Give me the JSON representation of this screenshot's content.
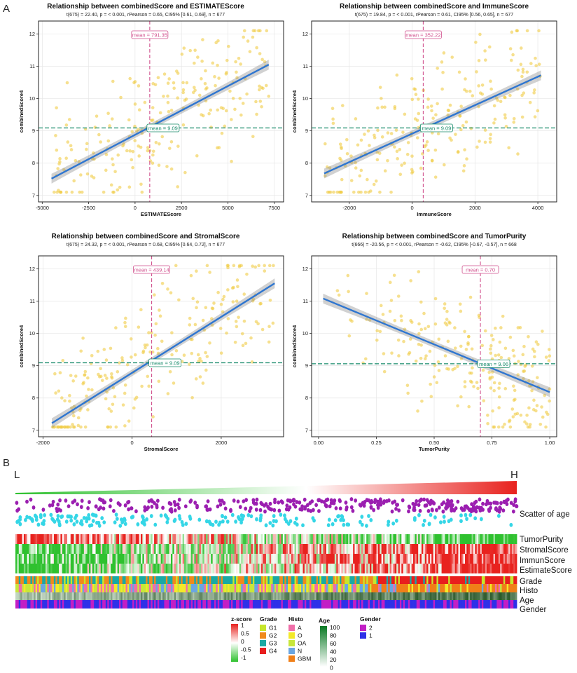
{
  "panel_letters": {
    "a": "A",
    "b": "B"
  },
  "chart_data": [
    {
      "type": "scatter",
      "title": "Relationship between combinedScore and ESTIMATEScore",
      "subtitle": "t(675) = 22.40, p = < 0.001, rPearson = 0.65, CI95% [0.61, 0.69], n = 677",
      "xlabel": "ESTIMATEScore",
      "ylabel": "combinedScore4",
      "xlim": [
        -5200,
        8000
      ],
      "ylim": [
        6.8,
        12.4
      ],
      "xticks": [
        -5000,
        -2500,
        0,
        2500,
        5000,
        7500
      ],
      "xtick_labels": [
        "-5000",
        "-2500",
        "0",
        "2500",
        "5000",
        "7500"
      ],
      "yticks": [
        7,
        8,
        9,
        10,
        11,
        12
      ],
      "ytick_labels": [
        "7",
        "8",
        "9",
        "10",
        "11",
        "12"
      ],
      "x_range": [
        -4500,
        7200
      ],
      "n_points": 230,
      "seed": 11,
      "fit_line": {
        "x": [
          -4500,
          7200
        ],
        "y": [
          7.52,
          11.05
        ]
      },
      "x_mean": 791.35,
      "y_mean": 9.09,
      "x_mean_label": "mean = 791.35",
      "y_mean_label": "mean = 9.09"
    },
    {
      "type": "scatter",
      "title": "Relationship between combinedScore and ImmuneScore",
      "subtitle": "t(675) = 19.84, p = < 0.001, rPearson = 0.61, CI95% [0.56, 0.65], n = 677",
      "xlabel": "ImmuneScore",
      "ylabel": "combinedScore4",
      "xlim": [
        -3200,
        4600
      ],
      "ylim": [
        6.8,
        12.4
      ],
      "xticks": [
        -2000,
        0,
        2000,
        4000
      ],
      "xtick_labels": [
        "-2000",
        "0",
        "2000",
        "4000"
      ],
      "yticks": [
        7,
        8,
        9,
        10,
        11,
        12
      ],
      "ytick_labels": [
        "7",
        "8",
        "9",
        "10",
        "11",
        "12"
      ],
      "x_range": [
        -2800,
        4100
      ],
      "n_points": 230,
      "seed": 23,
      "fit_line": {
        "x": [
          -2800,
          4100
        ],
        "y": [
          7.68,
          10.72
        ]
      },
      "x_mean": 352.22,
      "y_mean": 9.09,
      "x_mean_label": "mean = 352.22",
      "y_mean_label": "mean = 9.09"
    },
    {
      "type": "scatter",
      "title": "Relationship between combinedScore and StromalScore",
      "subtitle": "t(675) = 24.32, p = < 0.001, rPearson = 0.68, CI95% [0.64, 0.72], n = 677",
      "xlabel": "StromalScore",
      "ylabel": "combinedScore4",
      "xlim": [
        -2100,
        3400
      ],
      "ylim": [
        6.8,
        12.4
      ],
      "xticks": [
        -2000,
        0,
        2000
      ],
      "xtick_labels": [
        "-2000",
        "0",
        "2000"
      ],
      "yticks": [
        7,
        8,
        9,
        10,
        11,
        12
      ],
      "ytick_labels": [
        "7",
        "8",
        "9",
        "10",
        "11",
        "12"
      ],
      "x_range": [
        -1800,
        3200
      ],
      "n_points": 230,
      "seed": 37,
      "fit_line": {
        "x": [
          -1800,
          3200
        ],
        "y": [
          7.22,
          11.55
        ]
      },
      "x_mean": 439.14,
      "y_mean": 9.09,
      "x_mean_label": "mean = 439.14",
      "y_mean_label": "mean = 9.09"
    },
    {
      "type": "scatter",
      "title": "Relationship between combinedScore and TumorPurity",
      "subtitle": "t(666) = -20.56, p = < 0.001, rPearson = -0.62, CI95% [-0.67, -0.57], n = 668",
      "xlabel": "TumorPurity",
      "ylabel": "combinedScore4",
      "xlim": [
        -0.03,
        1.03
      ],
      "ylim": [
        6.8,
        12.4
      ],
      "xticks": [
        0,
        0.25,
        0.5,
        0.75,
        1.0
      ],
      "xtick_labels": [
        "0.00",
        "0.25",
        "0.50",
        "0.75",
        "1.00"
      ],
      "yticks": [
        7,
        8,
        9,
        10,
        11,
        12
      ],
      "ytick_labels": [
        "7",
        "8",
        "9",
        "10",
        "11",
        "12"
      ],
      "x_range": [
        0.02,
        1.0
      ],
      "n_points": 230,
      "seed": 53,
      "fit_line": {
        "x": [
          0.02,
          1.0
        ],
        "y": [
          11.08,
          8.18
        ]
      },
      "x_mean": 0.7,
      "y_mean": 9.06,
      "x_mean_label": "mean = 0.70",
      "y_mean_label": "mean = 9.06"
    }
  ],
  "heatmap": {
    "low_label": "L",
    "high_label": "H",
    "row_labels": {
      "scatter_age": "Scatter of age",
      "tumor_purity": "TumorPurity",
      "stromal": "StromalScore",
      "immune": "ImmunScore",
      "estimate": "EstimateScore",
      "grade": "Grade",
      "histo": "Histo",
      "age": "Age",
      "gender": "Gender"
    },
    "n_columns": 300,
    "colors": {
      "high": "#e8221e",
      "low": "#2fc12f",
      "mid": "#ffffff",
      "age_dot_1": "#9b1fb0",
      "age_dot_2": "#35d6e6"
    }
  },
  "legend": {
    "zscore": {
      "title": "z-score",
      "labels": [
        "1",
        "0.5",
        "0",
        "-0.5",
        "-1"
      ]
    },
    "grade": {
      "title": "Grade",
      "items": [
        {
          "label": "G1",
          "color": "#c7e62c"
        },
        {
          "label": "G2",
          "color": "#f08a1c"
        },
        {
          "label": "G3",
          "color": "#1aa9a4"
        },
        {
          "label": "G4",
          "color": "#e81e1e"
        }
      ]
    },
    "histo": {
      "title": "Histo",
      "items": [
        {
          "label": "A",
          "color": "#ef6ea8"
        },
        {
          "label": "O",
          "color": "#f3e92a"
        },
        {
          "label": "OA",
          "color": "#c8e63a"
        },
        {
          "label": "N",
          "color": "#6aa6e2"
        },
        {
          "label": "GBM",
          "color": "#f07f18"
        }
      ]
    },
    "age": {
      "title": "Age",
      "labels": [
        "100",
        "80",
        "60",
        "40",
        "20",
        "0"
      ]
    },
    "gender": {
      "title": "Gender",
      "items": [
        {
          "label": "2",
          "color": "#c21fc5"
        },
        {
          "label": "1",
          "color": "#2f31e8"
        }
      ]
    }
  }
}
